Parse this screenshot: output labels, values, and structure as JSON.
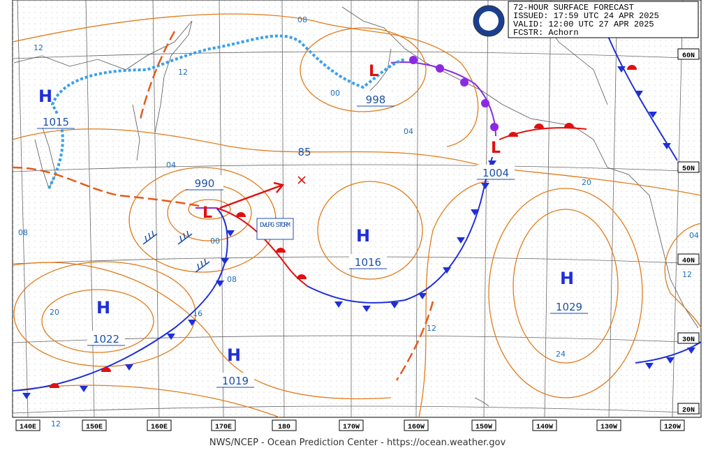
{
  "header": {
    "lines": [
      "72-HOUR SURFACE FORECAST",
      "ISSUED: 17:59 UTC 24 APR 2025",
      "VALID:  12:00 UTC 27 APR 2025",
      "FCSTR:  Achorn"
    ]
  },
  "footer": "NWS/NCEP - Ocean Prediction Center - https://ocean.weather.gov",
  "lon_labels": [
    "140E",
    "150E",
    "160E",
    "170E",
    "180",
    "170W",
    "160W",
    "150W",
    "140W",
    "130W",
    "120W"
  ],
  "lat_labels": [
    "60N",
    "50N",
    "40N",
    "30N",
    "20N"
  ],
  "centers": [
    {
      "symbol": "H",
      "pressure": 1015
    },
    {
      "symbol": "H",
      "pressure": 1022
    },
    {
      "symbol": "H",
      "pressure": 1019
    },
    {
      "symbol": "H",
      "pressure": 1016
    },
    {
      "symbol": "H",
      "pressure": 1029
    },
    {
      "symbol": "L",
      "pressure": 990
    },
    {
      "symbol": "L",
      "pressure": 998
    },
    {
      "symbol": "L",
      "pressure": 1004
    }
  ],
  "storm_label": "DVLPG STORM",
  "position_label": "85",
  "isobar_labels": [
    "12",
    "08",
    "12",
    "00",
    "04",
    "04",
    "08",
    "00",
    "08",
    "20",
    "16",
    "20",
    "04",
    "12",
    "12",
    "24",
    "12"
  ]
}
